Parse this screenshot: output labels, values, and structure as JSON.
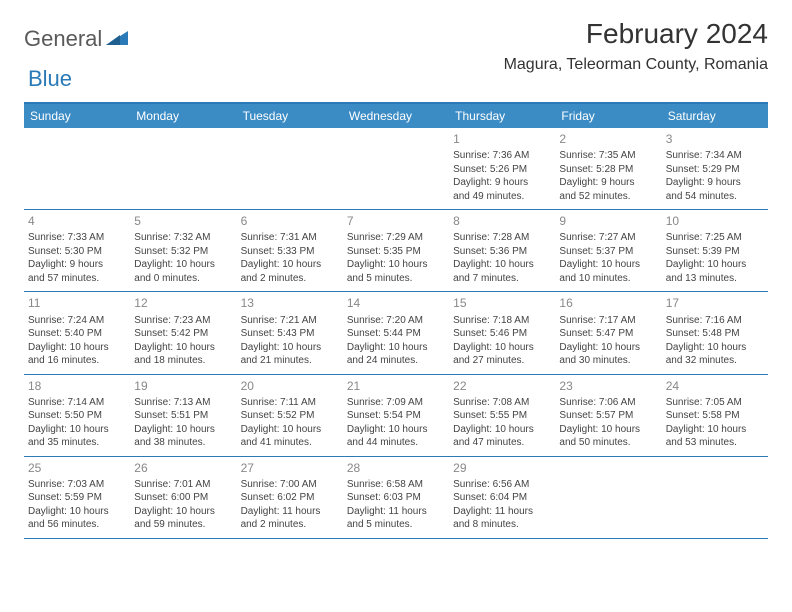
{
  "logo": {
    "part1": "General",
    "part2": "Blue"
  },
  "title": "February 2024",
  "location": "Magura, Teleorman County, Romania",
  "colors": {
    "accent": "#3b8bc4",
    "accent_border": "#2a7ab8",
    "text": "#333333",
    "muted": "#888888",
    "background": "#ffffff"
  },
  "weekdays": [
    "Sunday",
    "Monday",
    "Tuesday",
    "Wednesday",
    "Thursday",
    "Friday",
    "Saturday"
  ],
  "weeks": [
    [
      null,
      null,
      null,
      null,
      {
        "n": "1",
        "sr": "Sunrise: 7:36 AM",
        "ss": "Sunset: 5:26 PM",
        "dl1": "Daylight: 9 hours",
        "dl2": "and 49 minutes."
      },
      {
        "n": "2",
        "sr": "Sunrise: 7:35 AM",
        "ss": "Sunset: 5:28 PM",
        "dl1": "Daylight: 9 hours",
        "dl2": "and 52 minutes."
      },
      {
        "n": "3",
        "sr": "Sunrise: 7:34 AM",
        "ss": "Sunset: 5:29 PM",
        "dl1": "Daylight: 9 hours",
        "dl2": "and 54 minutes."
      }
    ],
    [
      {
        "n": "4",
        "sr": "Sunrise: 7:33 AM",
        "ss": "Sunset: 5:30 PM",
        "dl1": "Daylight: 9 hours",
        "dl2": "and 57 minutes."
      },
      {
        "n": "5",
        "sr": "Sunrise: 7:32 AM",
        "ss": "Sunset: 5:32 PM",
        "dl1": "Daylight: 10 hours",
        "dl2": "and 0 minutes."
      },
      {
        "n": "6",
        "sr": "Sunrise: 7:31 AM",
        "ss": "Sunset: 5:33 PM",
        "dl1": "Daylight: 10 hours",
        "dl2": "and 2 minutes."
      },
      {
        "n": "7",
        "sr": "Sunrise: 7:29 AM",
        "ss": "Sunset: 5:35 PM",
        "dl1": "Daylight: 10 hours",
        "dl2": "and 5 minutes."
      },
      {
        "n": "8",
        "sr": "Sunrise: 7:28 AM",
        "ss": "Sunset: 5:36 PM",
        "dl1": "Daylight: 10 hours",
        "dl2": "and 7 minutes."
      },
      {
        "n": "9",
        "sr": "Sunrise: 7:27 AM",
        "ss": "Sunset: 5:37 PM",
        "dl1": "Daylight: 10 hours",
        "dl2": "and 10 minutes."
      },
      {
        "n": "10",
        "sr": "Sunrise: 7:25 AM",
        "ss": "Sunset: 5:39 PM",
        "dl1": "Daylight: 10 hours",
        "dl2": "and 13 minutes."
      }
    ],
    [
      {
        "n": "11",
        "sr": "Sunrise: 7:24 AM",
        "ss": "Sunset: 5:40 PM",
        "dl1": "Daylight: 10 hours",
        "dl2": "and 16 minutes."
      },
      {
        "n": "12",
        "sr": "Sunrise: 7:23 AM",
        "ss": "Sunset: 5:42 PM",
        "dl1": "Daylight: 10 hours",
        "dl2": "and 18 minutes."
      },
      {
        "n": "13",
        "sr": "Sunrise: 7:21 AM",
        "ss": "Sunset: 5:43 PM",
        "dl1": "Daylight: 10 hours",
        "dl2": "and 21 minutes."
      },
      {
        "n": "14",
        "sr": "Sunrise: 7:20 AM",
        "ss": "Sunset: 5:44 PM",
        "dl1": "Daylight: 10 hours",
        "dl2": "and 24 minutes."
      },
      {
        "n": "15",
        "sr": "Sunrise: 7:18 AM",
        "ss": "Sunset: 5:46 PM",
        "dl1": "Daylight: 10 hours",
        "dl2": "and 27 minutes."
      },
      {
        "n": "16",
        "sr": "Sunrise: 7:17 AM",
        "ss": "Sunset: 5:47 PM",
        "dl1": "Daylight: 10 hours",
        "dl2": "and 30 minutes."
      },
      {
        "n": "17",
        "sr": "Sunrise: 7:16 AM",
        "ss": "Sunset: 5:48 PM",
        "dl1": "Daylight: 10 hours",
        "dl2": "and 32 minutes."
      }
    ],
    [
      {
        "n": "18",
        "sr": "Sunrise: 7:14 AM",
        "ss": "Sunset: 5:50 PM",
        "dl1": "Daylight: 10 hours",
        "dl2": "and 35 minutes."
      },
      {
        "n": "19",
        "sr": "Sunrise: 7:13 AM",
        "ss": "Sunset: 5:51 PM",
        "dl1": "Daylight: 10 hours",
        "dl2": "and 38 minutes."
      },
      {
        "n": "20",
        "sr": "Sunrise: 7:11 AM",
        "ss": "Sunset: 5:52 PM",
        "dl1": "Daylight: 10 hours",
        "dl2": "and 41 minutes."
      },
      {
        "n": "21",
        "sr": "Sunrise: 7:09 AM",
        "ss": "Sunset: 5:54 PM",
        "dl1": "Daylight: 10 hours",
        "dl2": "and 44 minutes."
      },
      {
        "n": "22",
        "sr": "Sunrise: 7:08 AM",
        "ss": "Sunset: 5:55 PM",
        "dl1": "Daylight: 10 hours",
        "dl2": "and 47 minutes."
      },
      {
        "n": "23",
        "sr": "Sunrise: 7:06 AM",
        "ss": "Sunset: 5:57 PM",
        "dl1": "Daylight: 10 hours",
        "dl2": "and 50 minutes."
      },
      {
        "n": "24",
        "sr": "Sunrise: 7:05 AM",
        "ss": "Sunset: 5:58 PM",
        "dl1": "Daylight: 10 hours",
        "dl2": "and 53 minutes."
      }
    ],
    [
      {
        "n": "25",
        "sr": "Sunrise: 7:03 AM",
        "ss": "Sunset: 5:59 PM",
        "dl1": "Daylight: 10 hours",
        "dl2": "and 56 minutes."
      },
      {
        "n": "26",
        "sr": "Sunrise: 7:01 AM",
        "ss": "Sunset: 6:00 PM",
        "dl1": "Daylight: 10 hours",
        "dl2": "and 59 minutes."
      },
      {
        "n": "27",
        "sr": "Sunrise: 7:00 AM",
        "ss": "Sunset: 6:02 PM",
        "dl1": "Daylight: 11 hours",
        "dl2": "and 2 minutes."
      },
      {
        "n": "28",
        "sr": "Sunrise: 6:58 AM",
        "ss": "Sunset: 6:03 PM",
        "dl1": "Daylight: 11 hours",
        "dl2": "and 5 minutes."
      },
      {
        "n": "29",
        "sr": "Sunrise: 6:56 AM",
        "ss": "Sunset: 6:04 PM",
        "dl1": "Daylight: 11 hours",
        "dl2": "and 8 minutes."
      },
      null,
      null
    ]
  ]
}
